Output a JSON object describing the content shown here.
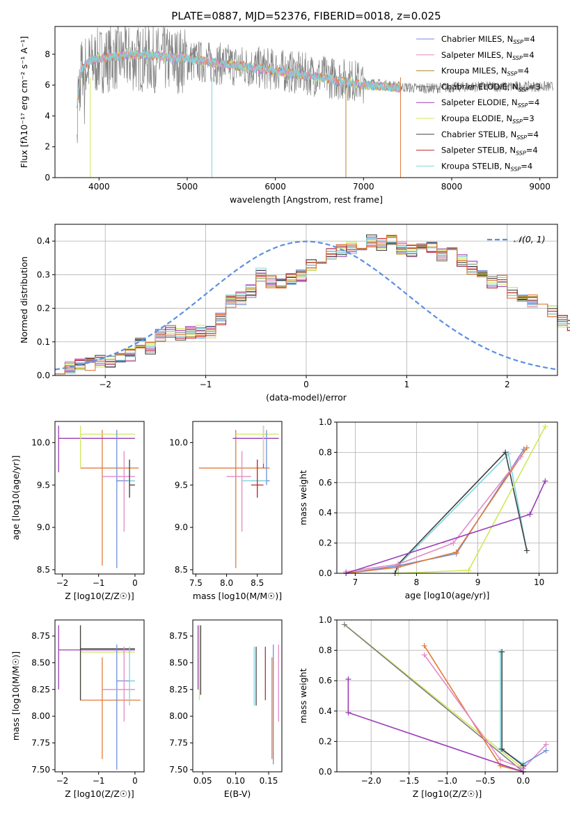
{
  "figure_title": "PLATE=0887, MJD=52376, FIBERID=0018, z=0.025",
  "colors": {
    "Chabrier MILES": "#6d8fd8",
    "Salpeter MILES": "#e389c6",
    "Kroupa MILES": "#b08a2a",
    "Chabrier ELODIE": "#7f7f7f",
    "Salpeter ELODIE": "#9a3bb8",
    "Kroupa ELODIE": "#cfe85a",
    "Chabrier STELIB": "#404040",
    "Salpeter STELIB": "#c0262b",
    "Kroupa STELIB": "#7fd6dc",
    "orange": "#e07b39",
    "normal": "#5b8fe0"
  },
  "chart_data": [
    {
      "id": "spectrum",
      "type": "line",
      "title": "PLATE=0887, MJD=52376, FIBERID=0018, z=0.025",
      "xlabel": "wavelength [Angstrom, rest frame]",
      "ylabel": "Flux [fλ10⁻¹⁷ erg cm⁻² s⁻¹ A⁻¹]",
      "xlim": [
        3500,
        9200
      ],
      "ylim": [
        0,
        9.8
      ],
      "xticks": [
        "4000",
        "5000",
        "6000",
        "7000",
        "8000",
        "9000"
      ],
      "yticks": [
        "0",
        "2",
        "4",
        "6",
        "8"
      ],
      "legend_position": "top-right",
      "legend": [
        "Chabrier MILES, NSSP=4",
        "Salpeter MILES, NSSP=4",
        "Kroupa MILES, NSSP=4",
        "Chabrier ELODIE, NSSP=3",
        "Salpeter ELODIE, NSSP=4",
        "Kroupa ELODIE, NSSP=3",
        "Chabrier STELIB, NSSP=4",
        "Salpeter STELIB, NSSP=4",
        "Kroupa STELIB, NSSP=4"
      ],
      "data_continuum": {
        "x": [
          3750,
          3800,
          3900,
          4000,
          4200,
          4500,
          5000,
          5500,
          6000,
          6500,
          7000,
          7400,
          7600,
          7800,
          8200,
          8600,
          9000,
          9150
        ],
        "y": [
          5.0,
          7.0,
          7.3,
          7.6,
          7.8,
          7.7,
          7.6,
          7.3,
          7.0,
          6.6,
          6.2,
          5.9,
          5.8,
          5.8,
          5.9,
          5.9,
          5.9,
          5.9
        ]
      },
      "model_continuum": {
        "x": [
          3750,
          3800,
          3900,
          4000,
          4200,
          4500,
          5000,
          5500,
          6000,
          6500,
          7000,
          7420
        ],
        "y": [
          4.8,
          7.0,
          7.6,
          7.7,
          7.9,
          8.0,
          7.7,
          7.3,
          6.9,
          6.5,
          6.0,
          5.8
        ]
      }
    },
    {
      "id": "residuals",
      "type": "step",
      "xlabel": "(data-model)/error",
      "ylabel": "Normed distribution",
      "xlim": [
        -2.5,
        2.5
      ],
      "ylim": [
        0,
        0.45
      ],
      "xticks": [
        "−2",
        "−1",
        "0",
        "1",
        "2"
      ],
      "yticks": [
        "0.0",
        "0.1",
        "0.2",
        "0.3",
        "0.4"
      ],
      "legend": [
        "𝒩(0, 1)"
      ],
      "legend_position": "top-right",
      "bin_width": 0.1,
      "bin_start": -2.5,
      "base_values": [
        0.02,
        0.025,
        0.03,
        0.035,
        0.04,
        0.04,
        0.055,
        0.06,
        0.1,
        0.08,
        0.12,
        0.13,
        0.12,
        0.13,
        0.13,
        0.13,
        0.17,
        0.22,
        0.23,
        0.25,
        0.3,
        0.28,
        0.28,
        0.29,
        0.3,
        0.33,
        0.33,
        0.36,
        0.37,
        0.38,
        0.39,
        0.4,
        0.39,
        0.4,
        0.38,
        0.37,
        0.38,
        0.38,
        0.36,
        0.37,
        0.34,
        0.32,
        0.3,
        0.28,
        0.28,
        0.25,
        0.24,
        0.22,
        0.2,
        0.19,
        0.16,
        0.15,
        0.14,
        0.12,
        0.13,
        0.11,
        0.1,
        0.085,
        0.075,
        0.065,
        0.06,
        0.055,
        0.05,
        0.045,
        0.04,
        0.035,
        0.03,
        0.03,
        0.025,
        0.02
      ]
    },
    {
      "id": "age_Z",
      "type": "scatter",
      "xlabel": "Z [log10(Z/Z☉)]",
      "ylabel": "age  [log10(age/yr)]",
      "xlim": [
        -2.2,
        0.25
      ],
      "ylim": [
        8.45,
        10.25
      ],
      "xticks": [
        "−2",
        "−1",
        "0"
      ],
      "yticks": [
        "8.5",
        "9.0",
        "9.5",
        "10.0"
      ]
    },
    {
      "id": "age_mass",
      "type": "scatter",
      "xlabel": "mass [log10(M/M☉)]",
      "ylabel": "",
      "xlim": [
        7.45,
        8.9
      ],
      "ylim": [
        8.45,
        10.25
      ],
      "xticks": [
        "7.5",
        "8.0",
        "8.5"
      ],
      "yticks": [
        "8.5",
        "9.0",
        "9.5",
        "10.0"
      ]
    },
    {
      "id": "weight_age",
      "type": "line",
      "xlabel": "age  [log10(age/yr)]",
      "ylabel": "mass weight",
      "xlim": [
        6.7,
        10.3
      ],
      "ylim": [
        0,
        1
      ],
      "xticks": [
        "7",
        "8",
        "9",
        "10"
      ],
      "yticks": [
        "0.0",
        "0.2",
        "0.4",
        "0.6",
        "0.8",
        "1.0"
      ]
    },
    {
      "id": "mass_Z",
      "type": "scatter",
      "xlabel": "Z [log10(Z/Z☉)]",
      "ylabel": "mass [log10(M/M☉)]",
      "xlim": [
        -2.2,
        0.25
      ],
      "ylim": [
        7.48,
        8.9
      ],
      "xticks": [
        "−2",
        "−1",
        "0"
      ],
      "yticks": [
        "7.50",
        "7.75",
        "8.00",
        "8.25",
        "8.50",
        "8.75"
      ]
    },
    {
      "id": "mass_ebv",
      "type": "scatter",
      "xlabel": "E(B-V)",
      "ylabel": "",
      "xlim": [
        0.035,
        0.17
      ],
      "ylim": [
        7.48,
        8.9
      ],
      "xticks": [
        "0.05",
        "0.10",
        "0.15"
      ],
      "yticks": [
        "7.50",
        "7.75",
        "8.00",
        "8.25",
        "8.50",
        "8.75"
      ]
    },
    {
      "id": "weight_Z",
      "type": "line",
      "xlabel": "Z [log10(Z/Z☉)]",
      "ylabel": "mass weight",
      "xlim": [
        -2.45,
        0.45
      ],
      "ylim": [
        0,
        1
      ],
      "xticks": [
        "−2.0",
        "−1.5",
        "−1.0",
        "−0.5",
        "0.0"
      ],
      "yticks": [
        "0.0",
        "0.2",
        "0.4",
        "0.6",
        "0.8",
        "1.0"
      ]
    }
  ]
}
